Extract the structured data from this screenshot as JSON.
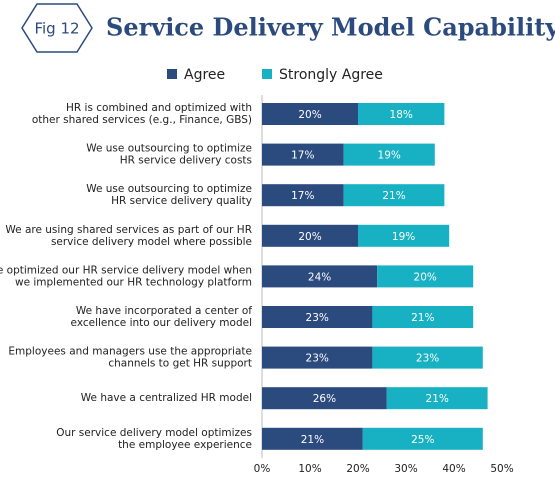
{
  "badge": "Fig 12",
  "chart_data": {
    "type": "stacked-bar-horizontal",
    "title": "Service Delivery Model Capability",
    "categories": [
      [
        "HR is combined and optimized with",
        "other shared services (e.g., Finance, GBS)"
      ],
      [
        "We use outsourcing to optimize",
        "HR service delivery costs"
      ],
      [
        "We use outsourcing to optimize",
        "HR service delivery quality"
      ],
      [
        "We are using shared services as part of our HR",
        "service delivery model where possible"
      ],
      [
        "We optimized our HR service delivery model when",
        "we implemented our HR technology platform"
      ],
      [
        "We have incorporated a center of",
        "excellence into our delivery model"
      ],
      [
        "Employees and managers use the appropriate",
        "channels to get HR support"
      ],
      [
        "We have a centralized HR model"
      ],
      [
        "Our service delivery model optimizes",
        "the employee experience"
      ]
    ],
    "series": [
      {
        "name": "Agree",
        "color": "#2b4a7e",
        "values": [
          20,
          17,
          17,
          20,
          24,
          23,
          23,
          26,
          21
        ],
        "value_labels": [
          "20%",
          "17%",
          "17%",
          "20%",
          "24%",
          "23%",
          "23%",
          "26%",
          "21%"
        ]
      },
      {
        "name": "Strongly Agree",
        "color": "#17b1c3",
        "values": [
          18,
          19,
          21,
          19,
          20,
          21,
          23,
          21,
          25
        ],
        "value_labels": [
          "18%",
          "19%",
          "21%",
          "19%",
          "20%",
          "21%",
          "23%",
          "21%",
          "25%"
        ]
      }
    ],
    "xlim": [
      0,
      50
    ],
    "xticks": [
      {
        "value": 0,
        "label": "0%"
      },
      {
        "value": 10,
        "label": "10%"
      },
      {
        "value": 20,
        "label": "20%"
      },
      {
        "value": 30,
        "label": "30%"
      },
      {
        "value": 40,
        "label": "40%"
      },
      {
        "value": 50,
        "label": "50%"
      }
    ],
    "legend": "top"
  }
}
